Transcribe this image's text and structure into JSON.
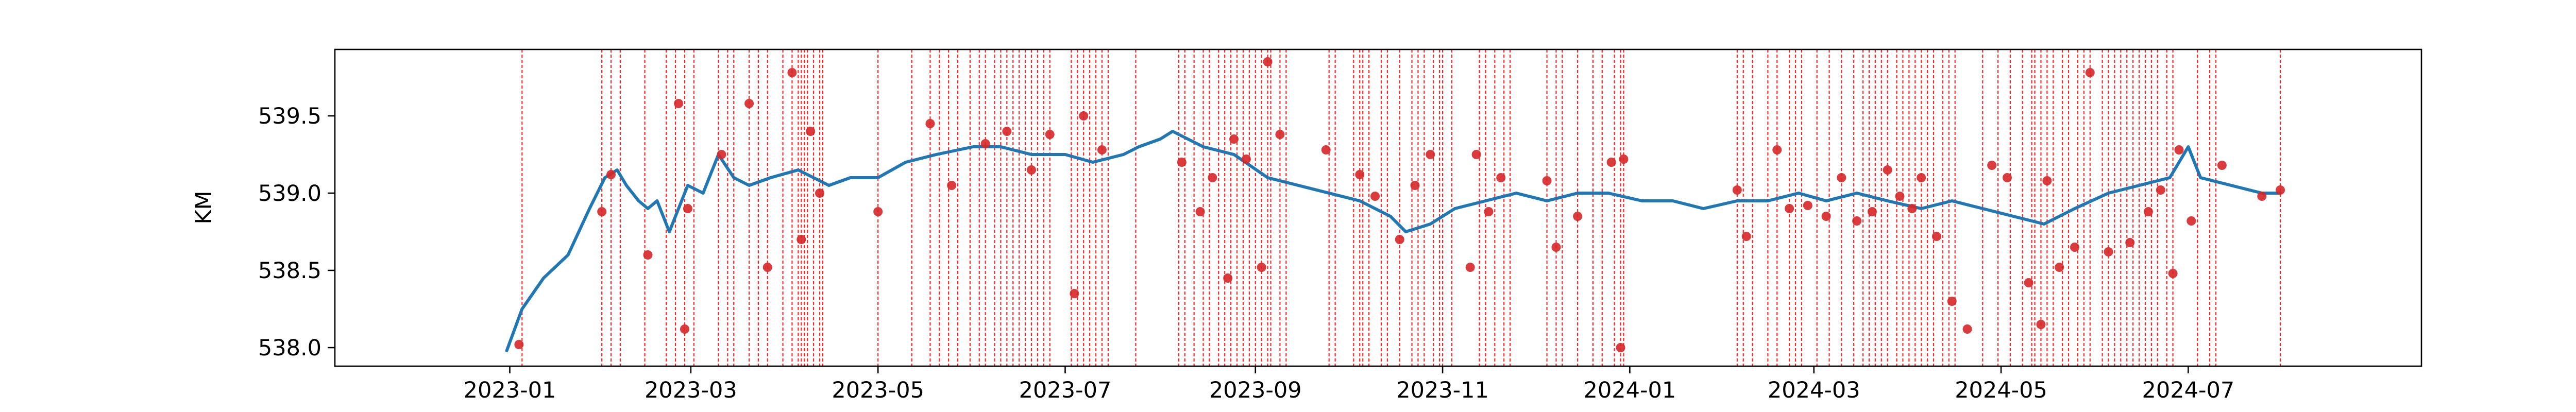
{
  "chart_data": {
    "type": "line",
    "title": "",
    "xlabel": "",
    "ylabel": "KM",
    "x_ticks": [
      "2023-01",
      "2023-03",
      "2023-05",
      "2023-07",
      "2023-09",
      "2023-11",
      "2024-01",
      "2024-03",
      "2024-05",
      "2024-07"
    ],
    "y_ticks": [
      "538.0",
      "538.5",
      "539.0",
      "539.5"
    ],
    "xlim": [
      "2022-11-05",
      "2024-09-15"
    ],
    "ylim": [
      537.88,
      539.93
    ],
    "grid": false,
    "legend": "none",
    "line_color": "#1f77b4",
    "marker_color": "#d62728",
    "vline_color": "#ff0000",
    "series": [
      {
        "values": [
          [
            "2022-12-31",
            537.98
          ],
          [
            "2023-01-05",
            538.25
          ],
          [
            "2023-01-12",
            538.45
          ],
          [
            "2023-01-20",
            538.6
          ],
          [
            "2023-01-27",
            538.9
          ],
          [
            "2023-02-01",
            539.1
          ],
          [
            "2023-02-05",
            539.15
          ],
          [
            "2023-02-08",
            539.05
          ],
          [
            "2023-02-12",
            538.95
          ],
          [
            "2023-02-15",
            538.9
          ],
          [
            "2023-02-18",
            538.95
          ],
          [
            "2023-02-22",
            538.75
          ],
          [
            "2023-02-28",
            539.05
          ],
          [
            "2023-03-05",
            539.0
          ],
          [
            "2023-03-10",
            539.25
          ],
          [
            "2023-03-15",
            539.1
          ],
          [
            "2023-03-20",
            539.05
          ],
          [
            "2023-03-27",
            539.1
          ],
          [
            "2023-04-05",
            539.15
          ],
          [
            "2023-04-15",
            539.05
          ],
          [
            "2023-04-22",
            539.1
          ],
          [
            "2023-05-01",
            539.1
          ],
          [
            "2023-05-10",
            539.2
          ],
          [
            "2023-05-20",
            539.25
          ],
          [
            "2023-06-01",
            539.3
          ],
          [
            "2023-06-10",
            539.3
          ],
          [
            "2023-06-20",
            539.25
          ],
          [
            "2023-07-01",
            539.25
          ],
          [
            "2023-07-10",
            539.2
          ],
          [
            "2023-07-20",
            539.25
          ],
          [
            "2023-07-25",
            539.3
          ],
          [
            "2023-08-01",
            539.35
          ],
          [
            "2023-08-05",
            539.4
          ],
          [
            "2023-08-10",
            539.35
          ],
          [
            "2023-08-15",
            539.3
          ],
          [
            "2023-08-25",
            539.25
          ],
          [
            "2023-09-05",
            539.1
          ],
          [
            "2023-09-15",
            539.05
          ],
          [
            "2023-09-25",
            539.0
          ],
          [
            "2023-10-05",
            538.95
          ],
          [
            "2023-10-15",
            538.85
          ],
          [
            "2023-10-20",
            538.75
          ],
          [
            "2023-10-28",
            538.8
          ],
          [
            "2023-11-05",
            538.9
          ],
          [
            "2023-11-15",
            538.95
          ],
          [
            "2023-11-25",
            539.0
          ],
          [
            "2023-12-05",
            538.95
          ],
          [
            "2023-12-15",
            539.0
          ],
          [
            "2023-12-25",
            539.0
          ],
          [
            "2024-01-05",
            538.95
          ],
          [
            "2024-01-15",
            538.95
          ],
          [
            "2024-01-25",
            538.9
          ],
          [
            "2024-02-05",
            538.95
          ],
          [
            "2024-02-15",
            538.95
          ],
          [
            "2024-02-25",
            539.0
          ],
          [
            "2024-03-05",
            538.95
          ],
          [
            "2024-03-15",
            539.0
          ],
          [
            "2024-03-25",
            538.95
          ],
          [
            "2024-04-05",
            538.9
          ],
          [
            "2024-04-15",
            538.95
          ],
          [
            "2024-04-25",
            538.9
          ],
          [
            "2024-05-05",
            538.85
          ],
          [
            "2024-05-15",
            538.8
          ],
          [
            "2024-05-25",
            538.9
          ],
          [
            "2024-06-05",
            539.0
          ],
          [
            "2024-06-15",
            539.05
          ],
          [
            "2024-06-25",
            539.1
          ],
          [
            "2024-07-01",
            539.3
          ],
          [
            "2024-07-05",
            539.1
          ],
          [
            "2024-07-15",
            539.05
          ],
          [
            "2024-07-25",
            539.0
          ],
          [
            "2024-07-31",
            539.0
          ]
        ]
      }
    ],
    "markers": [
      [
        "2023-01-04",
        538.02
      ],
      [
        "2023-01-31",
        538.88
      ],
      [
        "2023-02-03",
        539.12
      ],
      [
        "2023-02-15",
        538.6
      ],
      [
        "2023-02-25",
        539.58
      ],
      [
        "2023-02-27",
        538.12
      ],
      [
        "2023-02-28",
        538.9
      ],
      [
        "2023-03-11",
        539.25
      ],
      [
        "2023-03-20",
        539.58
      ],
      [
        "2023-03-26",
        538.52
      ],
      [
        "2023-04-03",
        539.78
      ],
      [
        "2023-04-06",
        538.7
      ],
      [
        "2023-04-09",
        539.4
      ],
      [
        "2023-04-12",
        539.0
      ],
      [
        "2023-05-01",
        538.88
      ],
      [
        "2023-05-18",
        539.45
      ],
      [
        "2023-05-25",
        539.05
      ],
      [
        "2023-06-05",
        539.32
      ],
      [
        "2023-06-12",
        539.4
      ],
      [
        "2023-06-20",
        539.15
      ],
      [
        "2023-06-26",
        539.38
      ],
      [
        "2023-07-04",
        538.35
      ],
      [
        "2023-07-07",
        539.5
      ],
      [
        "2023-07-13",
        539.28
      ],
      [
        "2023-08-08",
        539.2
      ],
      [
        "2023-08-14",
        538.88
      ],
      [
        "2023-08-18",
        539.1
      ],
      [
        "2023-08-23",
        538.45
      ],
      [
        "2023-08-25",
        539.35
      ],
      [
        "2023-08-29",
        539.22
      ],
      [
        "2023-09-03",
        538.52
      ],
      [
        "2023-09-05",
        539.85
      ],
      [
        "2023-09-09",
        539.38
      ],
      [
        "2023-09-24",
        539.28
      ],
      [
        "2023-10-05",
        539.12
      ],
      [
        "2023-10-10",
        538.98
      ],
      [
        "2023-10-18",
        538.7
      ],
      [
        "2023-10-23",
        539.05
      ],
      [
        "2023-10-28",
        539.25
      ],
      [
        "2023-11-10",
        538.52
      ],
      [
        "2023-11-12",
        539.25
      ],
      [
        "2023-11-16",
        538.88
      ],
      [
        "2023-11-20",
        539.1
      ],
      [
        "2023-12-05",
        539.08
      ],
      [
        "2023-12-08",
        538.65
      ],
      [
        "2023-12-15",
        538.85
      ],
      [
        "2023-12-26",
        539.2
      ],
      [
        "2023-12-29",
        538.0
      ],
      [
        "2023-12-30",
        539.22
      ],
      [
        "2024-02-05",
        539.02
      ],
      [
        "2024-02-08",
        538.72
      ],
      [
        "2024-02-18",
        539.28
      ],
      [
        "2024-02-22",
        538.9
      ],
      [
        "2024-02-28",
        538.92
      ],
      [
        "2024-03-05",
        538.85
      ],
      [
        "2024-03-10",
        539.1
      ],
      [
        "2024-03-15",
        538.82
      ],
      [
        "2024-03-20",
        538.88
      ],
      [
        "2024-03-25",
        539.15
      ],
      [
        "2024-03-29",
        538.98
      ],
      [
        "2024-04-02",
        538.9
      ],
      [
        "2024-04-05",
        539.1
      ],
      [
        "2024-04-10",
        538.72
      ],
      [
        "2024-04-15",
        538.3
      ],
      [
        "2024-04-20",
        538.12
      ],
      [
        "2024-04-28",
        539.18
      ],
      [
        "2024-05-03",
        539.1
      ],
      [
        "2024-05-10",
        538.42
      ],
      [
        "2024-05-14",
        538.15
      ],
      [
        "2024-05-16",
        539.08
      ],
      [
        "2024-05-20",
        538.52
      ],
      [
        "2024-05-25",
        538.65
      ],
      [
        "2024-05-30",
        539.78
      ],
      [
        "2024-06-05",
        538.62
      ],
      [
        "2024-06-12",
        538.68
      ],
      [
        "2024-06-18",
        538.88
      ],
      [
        "2024-06-22",
        539.02
      ],
      [
        "2024-06-26",
        538.48
      ],
      [
        "2024-06-28",
        539.28
      ],
      [
        "2024-07-02",
        538.82
      ],
      [
        "2024-07-12",
        539.18
      ],
      [
        "2024-07-25",
        538.98
      ],
      [
        "2024-07-31",
        539.02
      ]
    ],
    "vlines": [
      "2023-01-05",
      "2023-01-31",
      "2023-02-03",
      "2023-02-06",
      "2023-02-14",
      "2023-02-21",
      "2023-02-24",
      "2023-02-27",
      "2023-03-02",
      "2023-03-10",
      "2023-03-13",
      "2023-03-15",
      "2023-03-20",
      "2023-03-23",
      "2023-03-26",
      "2023-03-31",
      "2023-04-03",
      "2023-04-05",
      "2023-04-06",
      "2023-04-07",
      "2023-04-08",
      "2023-04-10",
      "2023-04-12",
      "2023-04-13",
      "2023-05-01",
      "2023-05-12",
      "2023-05-18",
      "2023-05-21",
      "2023-05-24",
      "2023-05-27",
      "2023-05-31",
      "2023-06-03",
      "2023-06-05",
      "2023-06-08",
      "2023-06-10",
      "2023-06-12",
      "2023-06-14",
      "2023-06-16",
      "2023-06-18",
      "2023-06-20",
      "2023-06-22",
      "2023-06-24",
      "2023-06-26",
      "2023-07-03",
      "2023-07-05",
      "2023-07-07",
      "2023-07-09",
      "2023-07-11",
      "2023-07-13",
      "2023-07-15",
      "2023-07-24",
      "2023-08-07",
      "2023-08-09",
      "2023-08-12",
      "2023-08-15",
      "2023-08-17",
      "2023-08-20",
      "2023-08-22",
      "2023-08-24",
      "2023-08-26",
      "2023-08-28",
      "2023-08-30",
      "2023-09-01",
      "2023-09-03",
      "2023-09-05",
      "2023-09-06",
      "2023-09-09",
      "2023-09-11",
      "2023-09-25",
      "2023-09-27",
      "2023-10-03",
      "2023-10-05",
      "2023-10-06",
      "2023-10-08",
      "2023-10-12",
      "2023-10-14",
      "2023-10-18",
      "2023-10-22",
      "2023-10-24",
      "2023-10-26",
      "2023-10-29",
      "2023-10-31",
      "2023-11-01",
      "2023-11-04",
      "2023-11-13",
      "2023-11-15",
      "2023-11-18",
      "2023-11-21",
      "2023-11-23",
      "2023-12-05",
      "2023-12-08",
      "2023-12-10",
      "2023-12-15",
      "2023-12-20",
      "2023-12-23",
      "2023-12-27",
      "2023-12-29",
      "2023-12-30",
      "2024-02-05",
      "2024-02-07",
      "2024-02-10",
      "2024-02-15",
      "2024-02-18",
      "2024-02-22",
      "2024-02-24",
      "2024-02-26",
      "2024-03-02",
      "2024-03-06",
      "2024-03-10",
      "2024-03-14",
      "2024-03-17",
      "2024-03-19",
      "2024-03-21",
      "2024-03-23",
      "2024-03-25",
      "2024-03-28",
      "2024-03-30",
      "2024-04-01",
      "2024-04-03",
      "2024-04-05",
      "2024-04-07",
      "2024-04-09",
      "2024-04-12",
      "2024-04-14",
      "2024-04-16",
      "2024-04-25",
      "2024-04-30",
      "2024-05-04",
      "2024-05-08",
      "2024-05-11",
      "2024-05-12",
      "2024-05-14",
      "2024-05-16",
      "2024-05-18",
      "2024-05-21",
      "2024-05-23",
      "2024-05-26",
      "2024-05-28",
      "2024-05-30",
      "2024-06-03",
      "2024-06-05",
      "2024-06-07",
      "2024-06-09",
      "2024-06-11",
      "2024-06-13",
      "2024-06-15",
      "2024-06-17",
      "2024-06-19",
      "2024-06-21",
      "2024-06-24",
      "2024-06-26",
      "2024-07-04",
      "2024-07-08",
      "2024-07-10",
      "2024-07-31"
    ]
  }
}
